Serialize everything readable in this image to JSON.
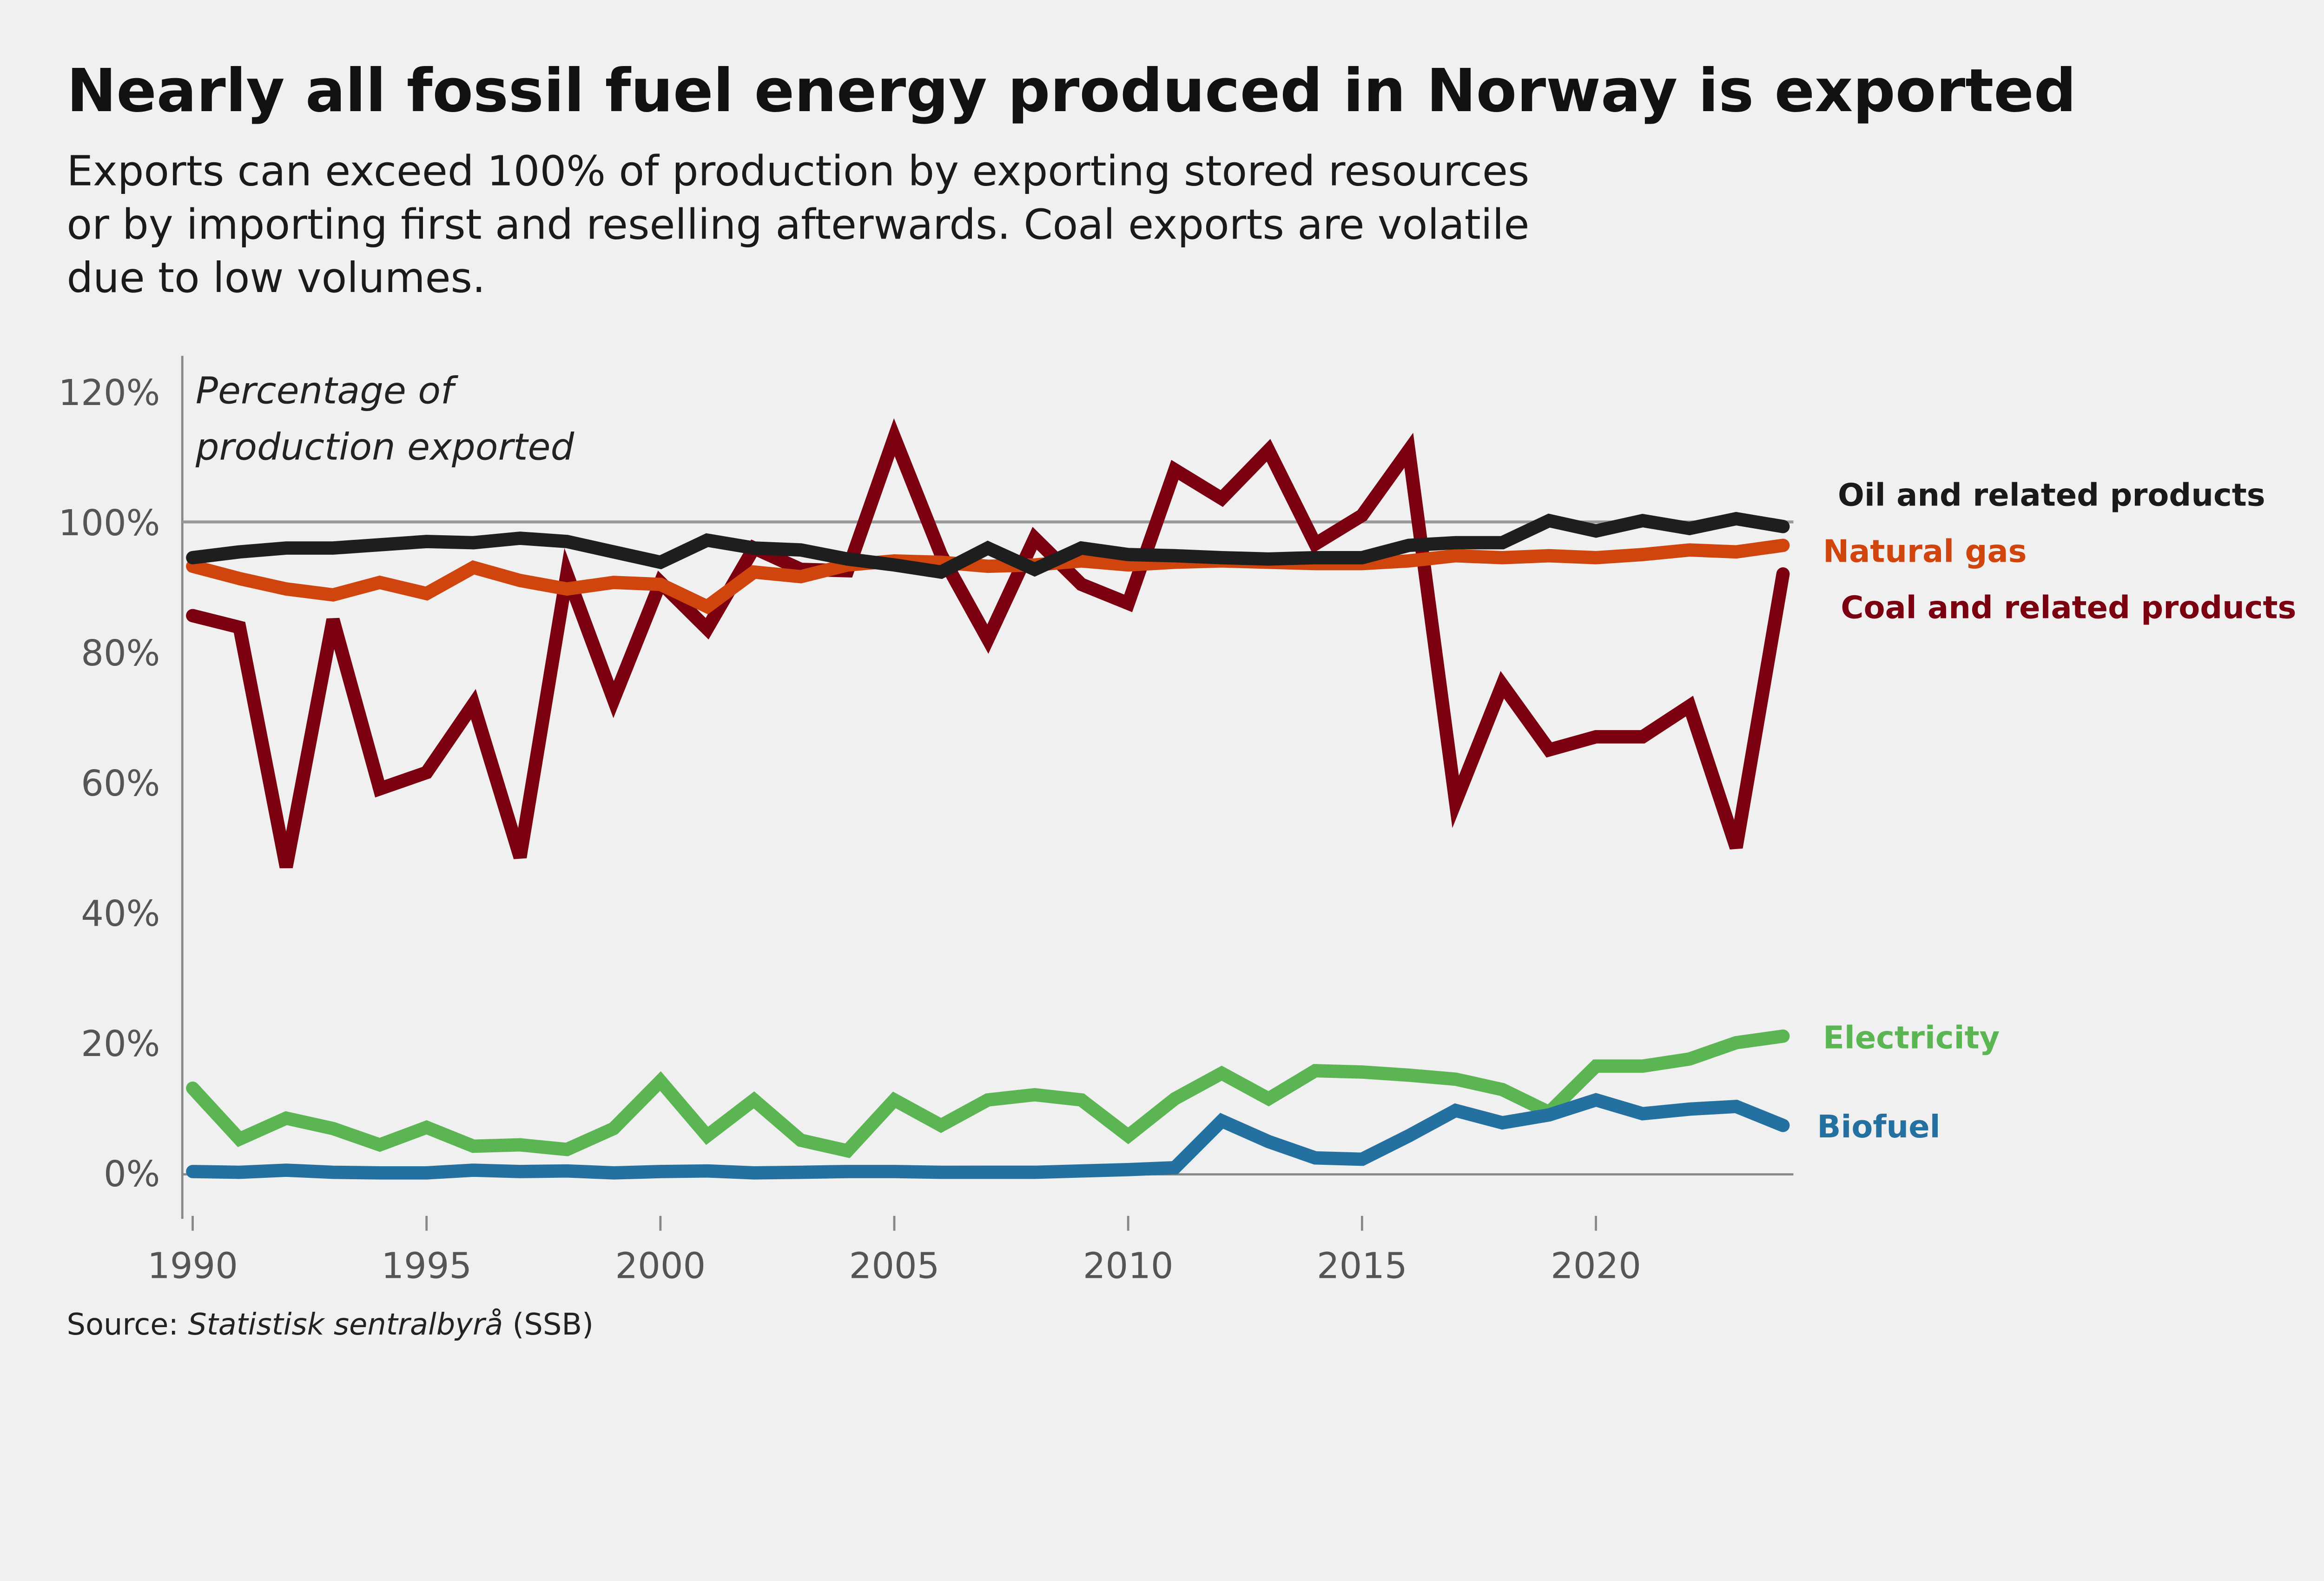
{
  "title": "Nearly all fossil fuel energy produced in Norway is exported",
  "subtitle_lines": [
    "Exports can exceed 100% of production by exporting stored resources",
    "or by importing first and reselling afterwards. Coal exports are volatile",
    "due to low volumes."
  ],
  "source": {
    "prefix": "Source: ",
    "name": "Statistisk sentralbyrå",
    "suffix": " (SSB)"
  },
  "chart_data": {
    "type": "line",
    "title": "Nearly all fossil fuel energy produced in Norway is exported",
    "ylabel_lines": [
      "Percentage of",
      "production exported"
    ],
    "xlim": [
      1990,
      2024
    ],
    "ylim": [
      -5,
      125
    ],
    "x_ticks": [
      1990,
      1995,
      2000,
      2005,
      2010,
      2015,
      2020
    ],
    "y_ticks": [
      0,
      20,
      40,
      60,
      80,
      100,
      120
    ],
    "y_tick_labels": [
      "0%",
      "20%",
      "40%",
      "60%",
      "80%",
      "100%",
      "120%"
    ],
    "reference_line": 100,
    "grid": false,
    "legend": "direct labels at line ends (right)",
    "x": [
      1990,
      1991,
      1992,
      1993,
      1994,
      1995,
      1996,
      1997,
      1998,
      1999,
      2000,
      2001,
      2002,
      2003,
      2004,
      2005,
      2006,
      2007,
      2008,
      2009,
      2010,
      2011,
      2012,
      2013,
      2014,
      2015,
      2016,
      2017,
      2018,
      2019,
      2020,
      2021,
      2022,
      2023,
      2024
    ],
    "series": [
      {
        "name": "Coal and related products",
        "color": "#7b0010",
        "values": [
          85.6,
          83.8,
          47,
          85,
          59,
          61.5,
          72,
          48.5,
          92,
          72.7,
          90.7,
          83.6,
          96,
          92.7,
          92.5,
          113,
          95,
          82,
          97.5,
          90.4,
          87.5,
          108,
          103.6,
          111,
          96.6,
          101,
          111,
          57,
          75,
          65,
          67,
          67,
          71.7,
          50,
          92
        ]
      },
      {
        "name": "Natural gas",
        "color": "#d0450d",
        "values": [
          93.2,
          91.3,
          89.7,
          88.8,
          90.7,
          89,
          93,
          91,
          89.7,
          90.7,
          90.4,
          87,
          92.3,
          91.6,
          93.4,
          94,
          93.8,
          93.2,
          93.4,
          94,
          93.4,
          93.8,
          94,
          93.8,
          93.6,
          93.6,
          94,
          94.8,
          94.5,
          94.8,
          94.5,
          95,
          95.7,
          95.4,
          96.4
        ]
      },
      {
        "name": "Oil and related products",
        "color": "#1e1e1e",
        "values": [
          94.5,
          95.4,
          96,
          96,
          96.5,
          97,
          96.8,
          97.5,
          97,
          95.4,
          93.8,
          97.2,
          96,
          95.7,
          94.3,
          93.4,
          92.3,
          96,
          92.7,
          96,
          95,
          94.8,
          94.5,
          94.3,
          94.5,
          94.5,
          96.4,
          96.8,
          96.8,
          100.2,
          98.6,
          100.2,
          99,
          100.5,
          99.3
        ]
      },
      {
        "name": "Electricity",
        "color": "#5ab552",
        "values": [
          13,
          5.2,
          8.4,
          6.8,
          4.3,
          7,
          4.1,
          4.3,
          3.6,
          6.8,
          14.1,
          5.7,
          11.2,
          5,
          3.4,
          11.2,
          7.3,
          11.2,
          12,
          11.2,
          5.7,
          11.4,
          15.3,
          11.4,
          15.7,
          15.5,
          15,
          14.4,
          12.8,
          9.3,
          16.4,
          16.4,
          17.5,
          20,
          21
        ]
      },
      {
        "name": "Biofuel",
        "color": "#2470a0",
        "values": [
          0.2,
          0.1,
          0.4,
          0.1,
          0,
          0,
          0.4,
          0.2,
          0.3,
          0,
          0.2,
          0.3,
          0,
          0.1,
          0.2,
          0.2,
          0.1,
          0.1,
          0.1,
          0.3,
          0.5,
          0.8,
          8,
          4.8,
          2.3,
          2.1,
          5.7,
          9.6,
          7.7,
          8.9,
          11.2,
          9.1,
          9.8,
          10.2,
          7.3
        ]
      }
    ]
  }
}
